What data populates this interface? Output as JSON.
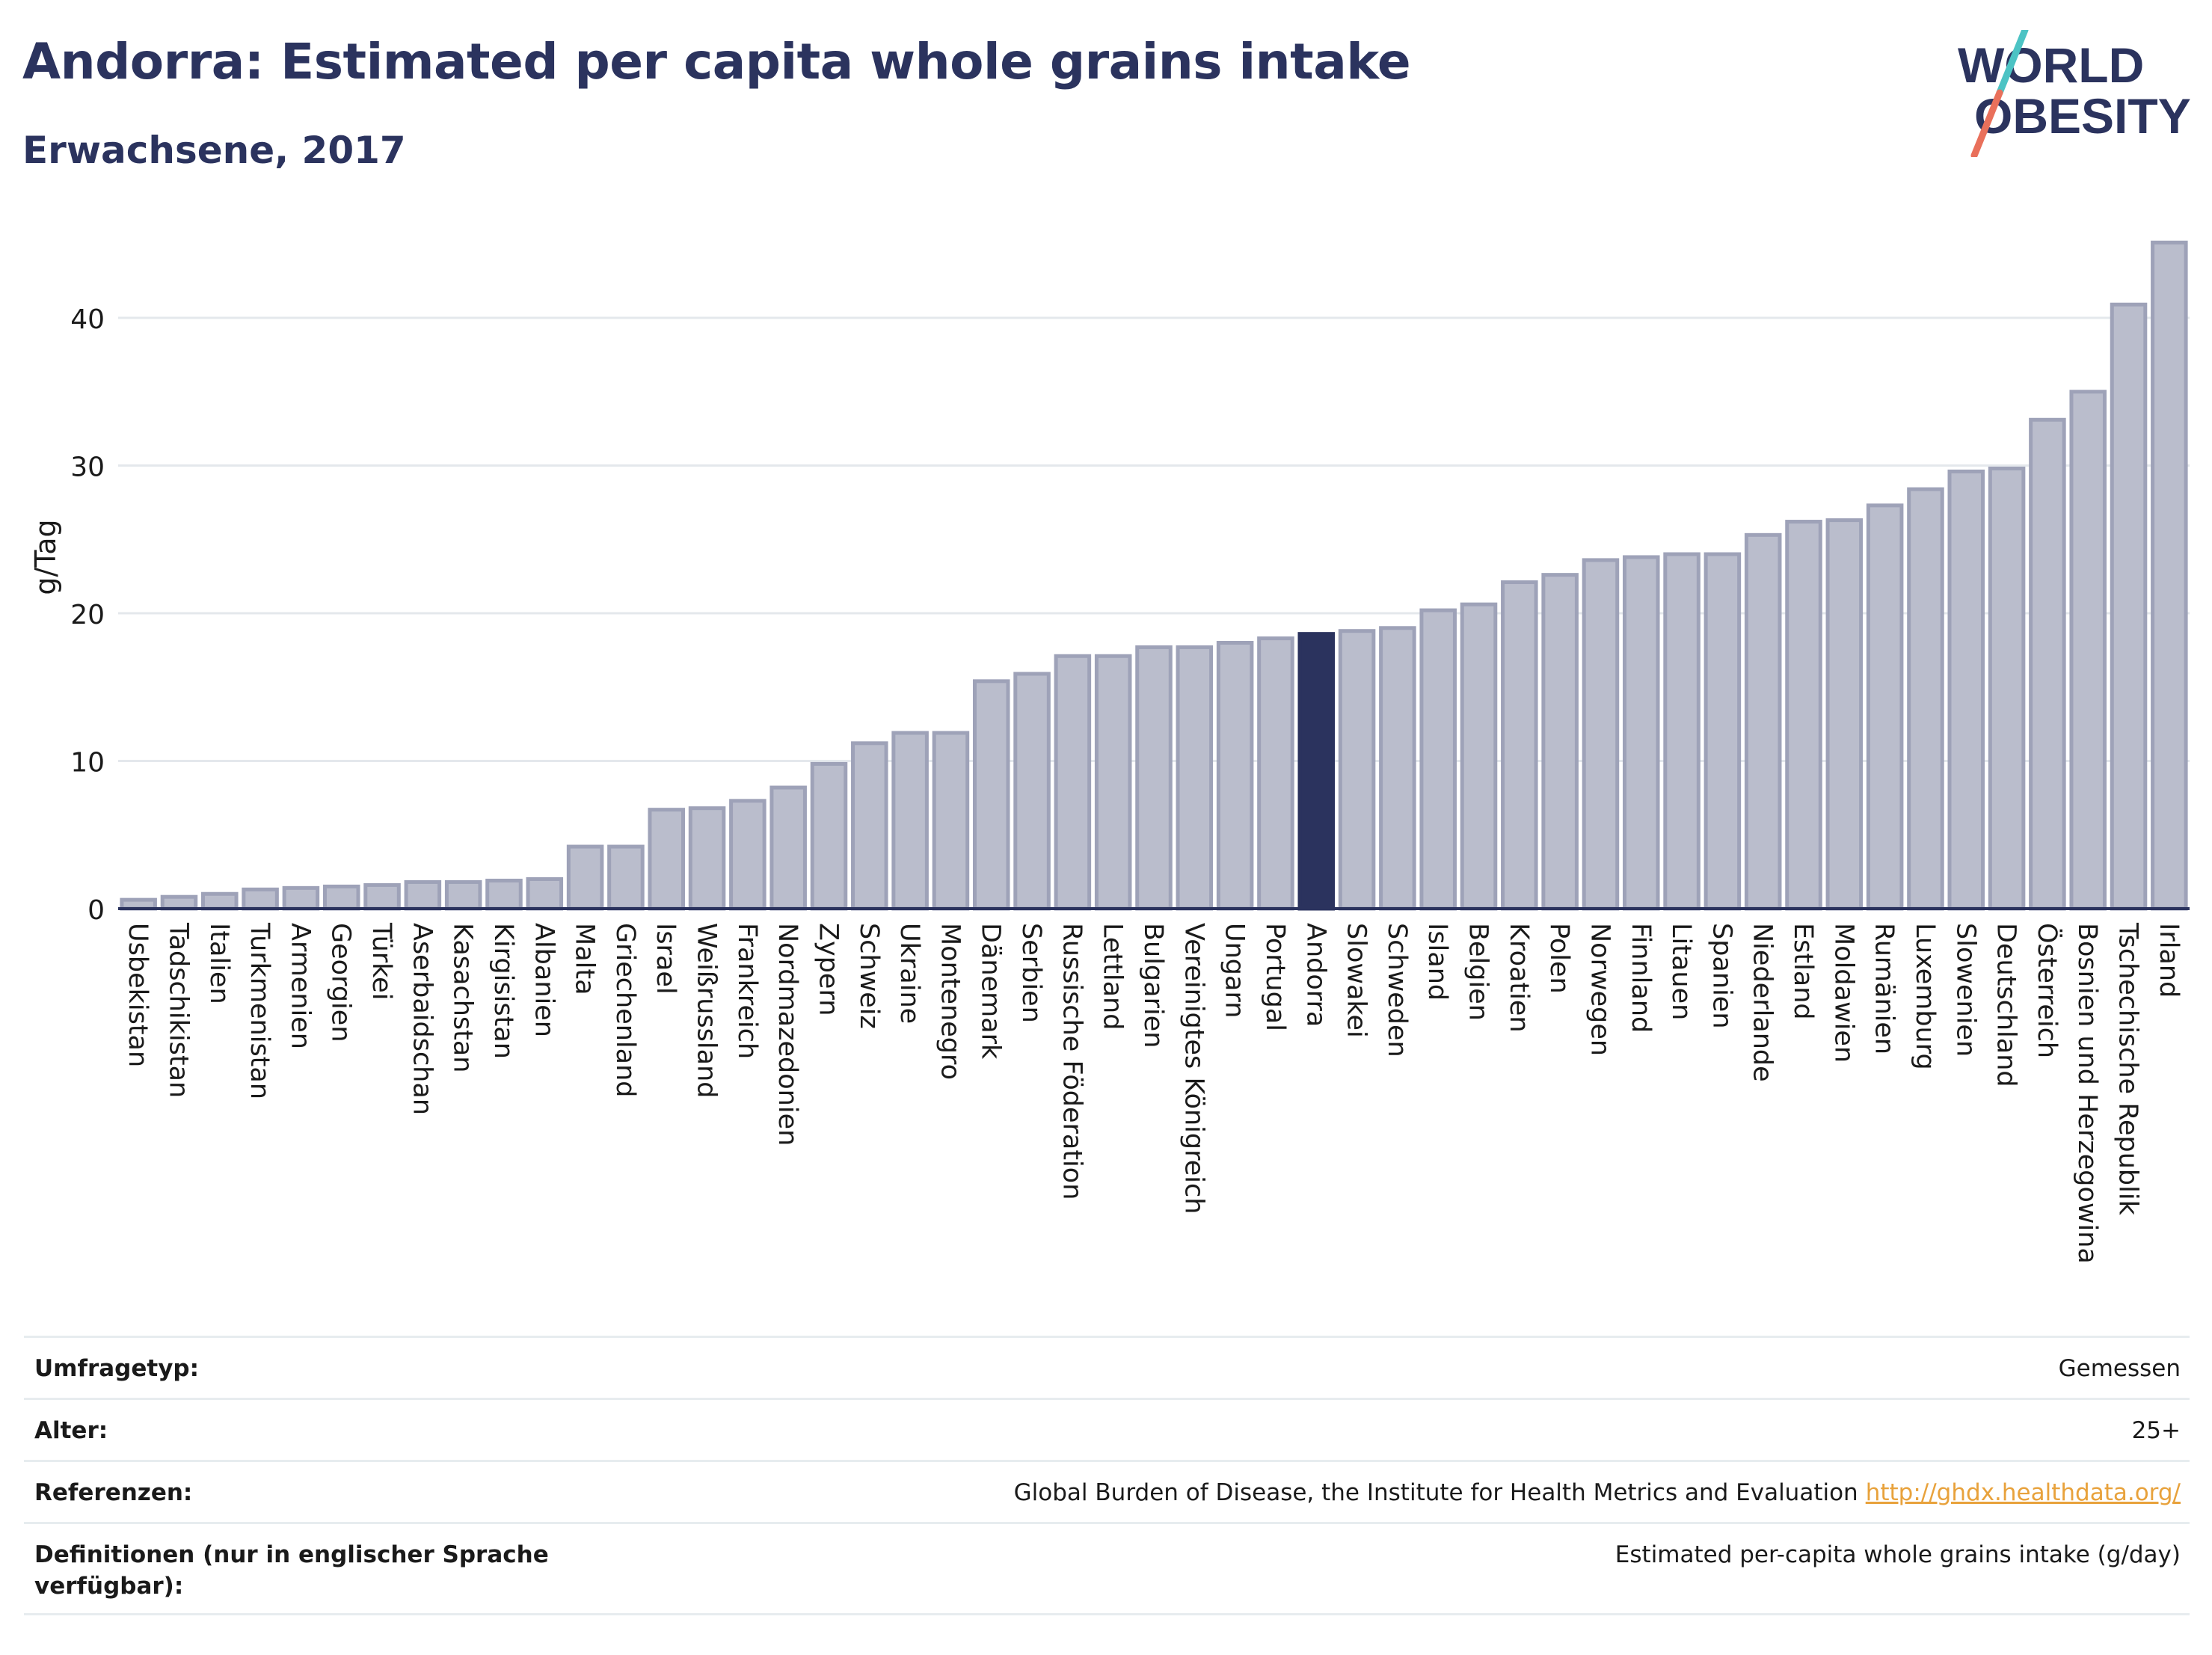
{
  "header": {
    "title": "Andorra: Estimated per capita whole grains intake",
    "subtitle": "Erwachsene, 2017",
    "logo_line1": "WORLD",
    "logo_line2": "OBESITY"
  },
  "colors": {
    "bar": "#babdcc",
    "bar_stroke": "#9ea2b8",
    "highlight": "#2b335e",
    "title": "#2b335e",
    "logo_teal": "#4cc3c4",
    "logo_red": "#e9705b"
  },
  "chart_data": {
    "type": "bar",
    "ylabel": "g/Tag",
    "ylim": [
      0,
      46
    ],
    "yticks": [
      0,
      10,
      20,
      30,
      40
    ],
    "grid": true,
    "highlight": "Andorra",
    "categories": [
      "Usbekistan",
      "Tadschikistan",
      "Italien",
      "Turkmenistan",
      "Armenien",
      "Georgien",
      "Türkei",
      "Aserbaidschan",
      "Kasachstan",
      "Kirgisistan",
      "Albanien",
      "Malta",
      "Griechenland",
      "Israel",
      "Weißrussland",
      "Frankreich",
      "Nordmazedonien",
      "Zypern",
      "Schweiz",
      "Ukraine",
      "Montenegro",
      "Dänemark",
      "Serbien",
      "Russische Föderation",
      "Lettland",
      "Bulgarien",
      "Vereinigtes Königreich",
      "Ungarn",
      "Portugal",
      "Andorra",
      "Slowakei",
      "Schweden",
      "Island",
      "Belgien",
      "Kroatien",
      "Polen",
      "Norwegen",
      "Finnland",
      "Litauen",
      "Spanien",
      "Niederlande",
      "Estland",
      "Moldawien",
      "Rumänien",
      "Luxemburg",
      "Slowenien",
      "Deutschland",
      "Österreich",
      "Bosnien und Herzegowina",
      "Tschechische Republik",
      "Irland"
    ],
    "values": [
      0.6,
      0.8,
      1.0,
      1.3,
      1.4,
      1.5,
      1.6,
      1.8,
      1.8,
      1.9,
      2.0,
      4.2,
      4.2,
      6.7,
      6.8,
      7.3,
      8.2,
      9.8,
      11.2,
      11.9,
      11.9,
      15.4,
      15.9,
      17.1,
      17.1,
      17.7,
      17.7,
      18.0,
      18.3,
      18.6,
      18.8,
      19.0,
      20.2,
      20.6,
      22.1,
      22.6,
      23.6,
      23.8,
      24.0,
      24.0,
      25.3,
      26.2,
      26.3,
      27.3,
      28.4,
      29.6,
      29.8,
      33.1,
      35.0,
      40.9,
      45.1
    ]
  },
  "info_table": [
    {
      "label": "Umfragetyp:",
      "value": "Gemessen"
    },
    {
      "label": "Alter:",
      "value": "25+"
    },
    {
      "label": "Referenzen:",
      "value": "Global Burden of Disease, the Institute for Health Metrics and Evaluation",
      "link": "http://ghdx.healthdata.org/"
    },
    {
      "label": "Definitionen (nur in englischer Sprache verfügbar):",
      "value": "Estimated per-capita whole grains intake (g/day)"
    }
  ]
}
